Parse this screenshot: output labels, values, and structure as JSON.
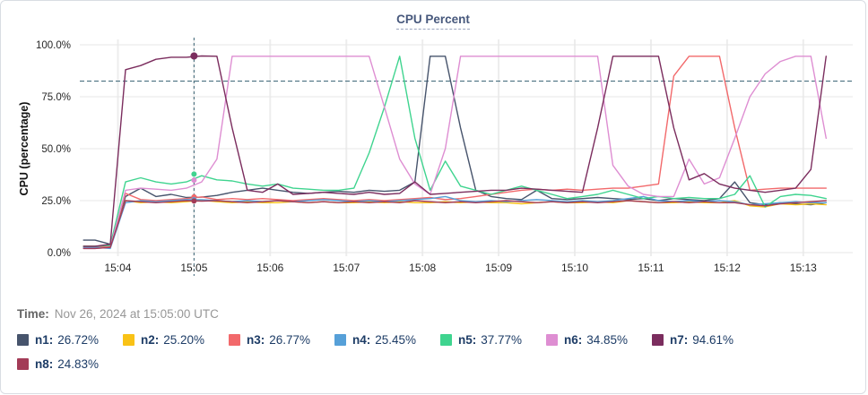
{
  "card": {
    "title": "CPU Percent"
  },
  "time_row": {
    "label": "Time:",
    "value": "Nov 26, 2024 at 15:05:00 UTC"
  },
  "colors": {
    "grid_h": "#e7e7e7",
    "grid_v": "#ededed",
    "crosshair": "#4a7080",
    "threshold": "#4a7080",
    "tick_text": "#262626",
    "axis_title": "#111111"
  },
  "chart_data": {
    "type": "line",
    "title": "CPU Percent",
    "xlabel": "",
    "ylabel": "CPU (percentage)",
    "ylim": [
      0,
      100
    ],
    "xlim": [
      3.5,
      13.65
    ],
    "grid": true,
    "legend_position": "bottom",
    "yticks": [
      0,
      25,
      50,
      75,
      100
    ],
    "ytick_labels": [
      "0.0%",
      "25.0%",
      "50.0%",
      "75.0%",
      "100.0%"
    ],
    "xticks": [
      4,
      5,
      6,
      7,
      8,
      9,
      10,
      11,
      12,
      13
    ],
    "xtick_labels": [
      "15:04",
      "15:05",
      "15:06",
      "15:07",
      "15:08",
      "15:09",
      "15:10",
      "15:11",
      "15:12",
      "15:13"
    ],
    "threshold_percent": 82.5,
    "crosshair": {
      "x": 5.0,
      "time_label": "15:05:00"
    },
    "x": [
      3.55,
      3.7,
      3.9,
      4.1,
      4.3,
      4.5,
      4.7,
      4.9,
      5.1,
      5.3,
      5.5,
      5.7,
      5.9,
      6.1,
      6.3,
      6.5,
      6.7,
      6.9,
      7.1,
      7.3,
      7.5,
      7.7,
      7.9,
      8.1,
      8.3,
      8.5,
      8.7,
      8.9,
      9.1,
      9.3,
      9.5,
      9.7,
      9.9,
      10.1,
      10.3,
      10.5,
      10.7,
      10.9,
      11.1,
      11.3,
      11.5,
      11.7,
      11.9,
      12.1,
      12.3,
      12.5,
      12.7,
      12.9,
      13.1,
      13.3
    ],
    "series": [
      {
        "name": "n1",
        "color": "#47546c",
        "value_at_crosshair": 26.72,
        "values": [
          6,
          6,
          4,
          27,
          31,
          27,
          28,
          26.5,
          26.7,
          27.5,
          29,
          30,
          31,
          30,
          29,
          28.5,
          29,
          29.5,
          29,
          30,
          29.5,
          30,
          34,
          94.5,
          94.5,
          60,
          30,
          27,
          26,
          25.5,
          30,
          26,
          25.5,
          26,
          26.5,
          26,
          25.5,
          26,
          25,
          26,
          25.5,
          25,
          26,
          34,
          24,
          23,
          24,
          23.5,
          23,
          24
        ]
      },
      {
        "name": "n2",
        "color": "#f9c216",
        "value_at_crosshair": 25.2,
        "values": [
          3,
          3,
          2.5,
          25,
          24,
          24.5,
          24,
          24.5,
          25.2,
          24.5,
          24,
          24.5,
          24,
          24,
          24.5,
          24,
          24.5,
          24,
          24,
          24.5,
          24,
          24.5,
          24,
          24,
          24.5,
          24,
          24.5,
          24,
          24,
          23.5,
          24,
          24.5,
          24,
          24,
          24.5,
          24,
          25,
          24.5,
          24,
          24,
          24.5,
          24,
          24,
          25,
          22.5,
          22,
          23.5,
          23,
          23.5,
          23
        ]
      },
      {
        "name": "n3",
        "color": "#f2696b",
        "value_at_crosshair": 26.77,
        "values": [
          2.5,
          2.5,
          3,
          28.5,
          25.5,
          25,
          25.5,
          26,
          26.8,
          25.5,
          26,
          25.5,
          26,
          25.5,
          25,
          25.5,
          26,
          25.5,
          25,
          25.5,
          25,
          25.5,
          26,
          26.5,
          25.5,
          26,
          27,
          28,
          29,
          30,
          30.5,
          30,
          30.5,
          30,
          30.5,
          31,
          31,
          32,
          33,
          85,
          94.5,
          94.5,
          94.5,
          60,
          30,
          30.5,
          31,
          31,
          31,
          31
        ]
      },
      {
        "name": "n4",
        "color": "#56a0d8",
        "value_at_crosshair": 25.45,
        "values": [
          2.5,
          2.5,
          2,
          24,
          25,
          24.5,
          25,
          25.5,
          25.45,
          25,
          24.5,
          25,
          24.5,
          25,
          24.5,
          25,
          25.5,
          25,
          24.5,
          25,
          24.5,
          25,
          25.5,
          26,
          27,
          25,
          24.5,
          25,
          24.5,
          25,
          25.5,
          25,
          24.5,
          25,
          24.5,
          25,
          26,
          27,
          25,
          24.5,
          25,
          24.5,
          25,
          24.5,
          23,
          23.5,
          24,
          24.5,
          24,
          24
        ]
      },
      {
        "name": "n5",
        "color": "#3fd48f",
        "value_at_crosshair": 37.77,
        "values": [
          3,
          3,
          3.5,
          34,
          36,
          34,
          33,
          34,
          37,
          35,
          34.5,
          33,
          32,
          33,
          31,
          30.5,
          30,
          30,
          31,
          48,
          70,
          94.5,
          55,
          30,
          44,
          32,
          30,
          28,
          30,
          32,
          30,
          28,
          26,
          27,
          28,
          30,
          28,
          26,
          27,
          26,
          26.5,
          26,
          26,
          28,
          37,
          22,
          27,
          28,
          27.5,
          26
        ]
      },
      {
        "name": "n6",
        "color": "#de8ed2",
        "value_at_crosshair": 34.85,
        "values": [
          2,
          2,
          2.5,
          30,
          31,
          30.5,
          30,
          31,
          34,
          45,
          94.5,
          94.5,
          94.5,
          94.5,
          94.5,
          94.5,
          94.5,
          94.5,
          94.5,
          94.5,
          70,
          45,
          33,
          28,
          50,
          94.5,
          94.5,
          94.5,
          94.5,
          94.5,
          94.5,
          94.5,
          94.5,
          94.5,
          94.5,
          42,
          32,
          28,
          27,
          27,
          45,
          33,
          36,
          55,
          75,
          86,
          92,
          94.5,
          94.5,
          55
        ]
      },
      {
        "name": "n7",
        "color": "#7b2d5e",
        "value_at_crosshair": 94.61,
        "values": [
          3,
          3,
          4,
          88,
          90,
          93,
          94,
          94,
          94.6,
          94.5,
          60,
          30,
          29,
          33,
          28,
          28.5,
          29,
          28.5,
          28,
          29,
          28,
          28.5,
          34,
          28,
          28.5,
          29,
          29.5,
          30,
          30,
          31,
          30.5,
          30,
          29.5,
          29,
          60,
          94.5,
          94.5,
          94.5,
          94.5,
          60,
          35,
          38,
          33,
          31,
          30,
          29,
          30,
          31,
          40,
          94.5
        ]
      },
      {
        "name": "n8",
        "color": "#a33b57",
        "value_at_crosshair": 24.83,
        "values": [
          2,
          2,
          2.5,
          25,
          24.5,
          24,
          24.5,
          25,
          24.8,
          25,
          24.5,
          24,
          24.5,
          25,
          24.5,
          24,
          24.5,
          24,
          24.5,
          24,
          24.5,
          24,
          25,
          24.5,
          24,
          24.5,
          24,
          24.5,
          25,
          24.5,
          24,
          24.5,
          24,
          24.5,
          24,
          24.5,
          25,
          24.5,
          24,
          24.5,
          24,
          24.5,
          24,
          24,
          23,
          22.5,
          23.5,
          24,
          24.5,
          25
        ]
      }
    ]
  },
  "legend": {
    "rows": [
      [
        {
          "label": "n1:",
          "value": "26.72%",
          "color": "#47546c"
        },
        {
          "label": "n2:",
          "value": "25.20%",
          "color": "#f9c216"
        },
        {
          "label": "n3:",
          "value": "26.77%",
          "color": "#f2696b"
        },
        {
          "label": "n4:",
          "value": "25.45%",
          "color": "#56a0d8"
        },
        {
          "label": "n5:",
          "value": "37.77%",
          "color": "#3fd48f"
        },
        {
          "label": "n6:",
          "value": "34.85%",
          "color": "#de8ed2"
        },
        {
          "label": "n7:",
          "value": "94.61%",
          "color": "#7b2d5e"
        }
      ],
      [
        {
          "label": "n8:",
          "value": "24.83%",
          "color": "#a33b57"
        }
      ]
    ]
  }
}
